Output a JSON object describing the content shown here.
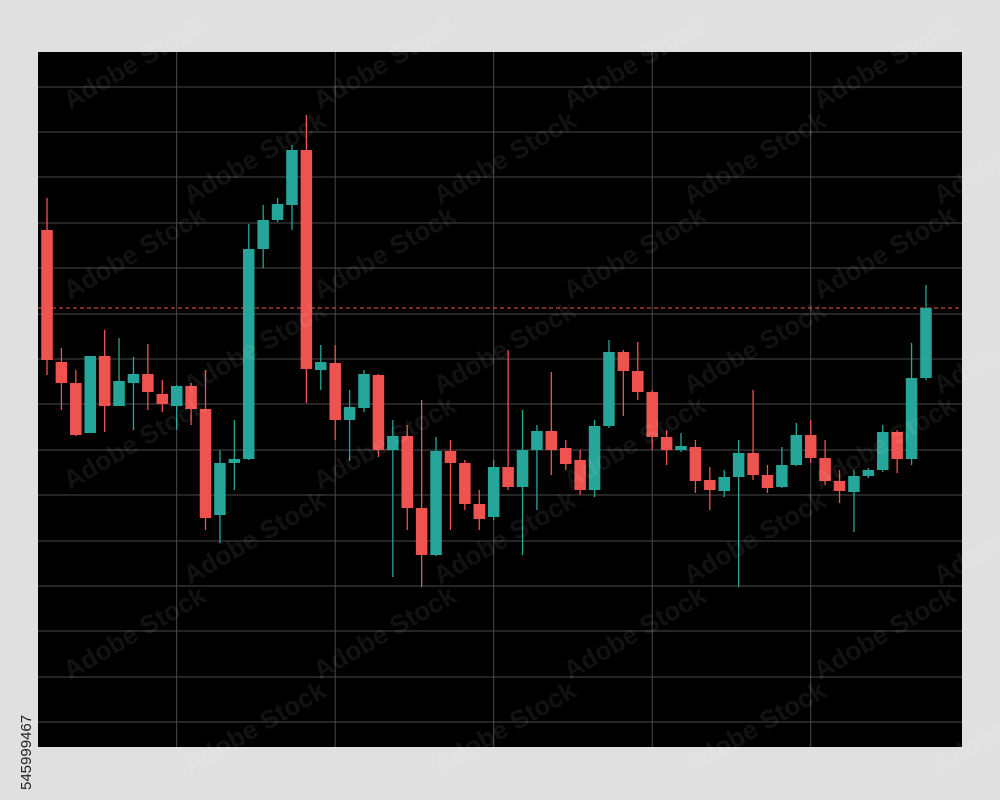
{
  "chart_data": {
    "type": "candlestick",
    "x": [
      0,
      1,
      2,
      3,
      4,
      5,
      6,
      7,
      8,
      9,
      10,
      11,
      12,
      13,
      14,
      15,
      16,
      17,
      18,
      19,
      20,
      21,
      22,
      23,
      24,
      25,
      26,
      27,
      28,
      29,
      30,
      31,
      32,
      33,
      34,
      35,
      36,
      37,
      38,
      39,
      40,
      41,
      42,
      43,
      44,
      45,
      46,
      47,
      48,
      49,
      50,
      51,
      52,
      53,
      54,
      55,
      56,
      57,
      58,
      59,
      60,
      61
    ],
    "open": [
      517,
      385,
      364,
      314,
      391,
      341,
      364,
      373,
      353,
      341,
      361,
      338,
      232,
      284,
      288,
      498,
      527,
      542,
      597,
      377,
      384,
      327,
      339,
      372,
      297,
      311,
      239,
      192,
      296,
      284,
      243,
      230,
      280,
      260,
      297,
      316,
      299,
      287,
      257,
      321,
      395,
      376,
      355,
      310,
      297,
      300,
      267,
      256,
      270,
      294,
      272,
      260,
      282,
      312,
      289,
      266,
      255,
      271,
      277,
      315,
      288,
      369
    ],
    "high": [
      549,
      399,
      377,
      391,
      417,
      409,
      390,
      403,
      367,
      362,
      364,
      377,
      297,
      327,
      523,
      542,
      549,
      602,
      632,
      402,
      402,
      357,
      377,
      373,
      327,
      322,
      347,
      310,
      307,
      287,
      257,
      287,
      397,
      337,
      322,
      375,
      307,
      297,
      327,
      407,
      397,
      405,
      357,
      317,
      314,
      307,
      280,
      277,
      307,
      357,
      282,
      300,
      324,
      327,
      307,
      277,
      277,
      279,
      322,
      317,
      404,
      462
    ],
    "low": [
      372,
      337,
      311,
      314,
      315,
      341,
      317,
      337,
      335,
      317,
      322,
      217,
      204,
      257,
      287,
      479,
      525,
      517,
      344,
      357,
      307,
      286,
      335,
      290,
      170,
      217,
      160,
      191,
      217,
      237,
      217,
      227,
      257,
      192,
      237,
      272,
      277,
      252,
      250,
      319,
      331,
      347,
      297,
      282,
      295,
      254,
      237,
      250,
      160,
      267,
      254,
      259,
      281,
      284,
      262,
      244,
      215,
      269,
      275,
      274,
      282,
      367
    ],
    "close": [
      387,
      364,
      312,
      391,
      341,
      366,
      373,
      355,
      343,
      361,
      338,
      229,
      284,
      288,
      498,
      527,
      543,
      597,
      378,
      385,
      327,
      340,
      373,
      297,
      311,
      239,
      192,
      296,
      284,
      243,
      228,
      280,
      260,
      297,
      316,
      297,
      283,
      257,
      321,
      395,
      376,
      355,
      310,
      297,
      301,
      266,
      257,
      270,
      294,
      272,
      259,
      282,
      312,
      289,
      266,
      256,
      271,
      277,
      315,
      288,
      369,
      439
    ],
    "up_color": "#26a69a",
    "down_color": "#ef5350",
    "xlim": [
      -0.625,
      63.5
    ],
    "xticks": [
      9,
      20,
      31,
      42,
      53
    ],
    "ylim": [
      0,
      695
    ],
    "yticks": [
      25,
      70,
      116,
      161,
      206,
      252,
      297,
      343,
      388,
      433,
      479,
      524,
      570,
      615,
      660
    ],
    "grid": true,
    "hline": 439,
    "hline_color": "#ef5350"
  },
  "watermark": "Adobe Stock",
  "image_id": "545999467"
}
